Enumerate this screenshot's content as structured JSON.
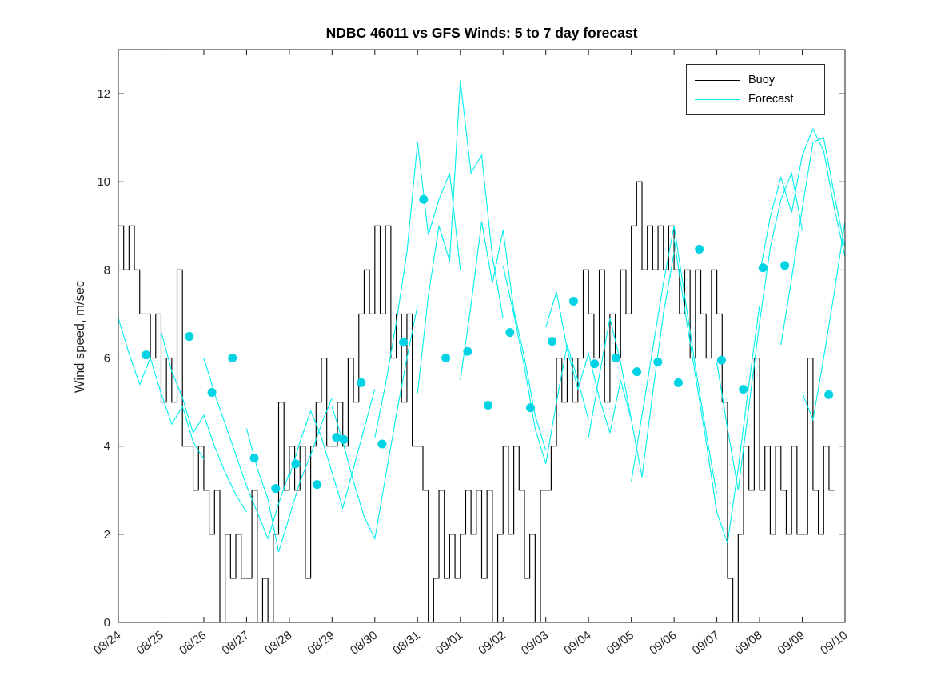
{
  "chart_data": {
    "type": "line",
    "title": "NDBC 46011 vs GFS Winds: 5 to 7 day forecast",
    "xlabel": "",
    "ylabel": "Wind speed, m/sec",
    "ylim": [
      0,
      13
    ],
    "x_range": [
      0,
      17
    ],
    "yticks": [
      0,
      2,
      4,
      6,
      8,
      10,
      12
    ],
    "xtick_labels": [
      "08/24",
      "08/25",
      "08/26",
      "08/27",
      "08/28",
      "08/29",
      "08/30",
      "08/31",
      "09/01",
      "09/02",
      "09/03",
      "09/04",
      "09/05",
      "09/06",
      "09/07",
      "09/08",
      "09/09",
      "09/10"
    ],
    "grid": false,
    "legend": {
      "position": "top-right",
      "entries": [
        "Buoy",
        "Forecast"
      ]
    },
    "colors": {
      "buoy": "#000000",
      "forecast": "#00eeee",
      "marker": "#00d4e4"
    },
    "series": {
      "buoy": {
        "name": "Buoy",
        "style": "step",
        "t0": 0,
        "dt": 0.125,
        "values": [
          9,
          8,
          9,
          8,
          7,
          7,
          6,
          7,
          5,
          6,
          5,
          8,
          4,
          4,
          3,
          4,
          3,
          2,
          3,
          0,
          2,
          1,
          2,
          1,
          1,
          3,
          0,
          1,
          0,
          2,
          5,
          3,
          4,
          3,
          4,
          1,
          4,
          5,
          6,
          4,
          4,
          5,
          4,
          6,
          5,
          7,
          8,
          7,
          9,
          7,
          9,
          6,
          7,
          5,
          7,
          4,
          4,
          3,
          0,
          1,
          3,
          1,
          2,
          1,
          2,
          3,
          2,
          3,
          1,
          3,
          0,
          2,
          4,
          2,
          4,
          3,
          1,
          2,
          0,
          3,
          3,
          4,
          6,
          5,
          6,
          5,
          6,
          8,
          7,
          6,
          8,
          5,
          7,
          6,
          8,
          7,
          9,
          10,
          8,
          9,
          8,
          9,
          8,
          9,
          8,
          7,
          8,
          6,
          8,
          7,
          6,
          8,
          7,
          5,
          1,
          0,
          2,
          4,
          3,
          6,
          3,
          4,
          2,
          4,
          3,
          2,
          4,
          2,
          2,
          6,
          3,
          2,
          4,
          3
        ]
      },
      "forecast_runs": [
        {
          "t0": 0,
          "dt": 0.25,
          "values": [
            6.9,
            6.1,
            5.4,
            6.0,
            5.2,
            4.5,
            4.9,
            4.1,
            3.7
          ]
        },
        {
          "t0": 1,
          "dt": 0.25,
          "values": [
            6.6,
            5.7,
            5.1,
            4.3,
            4.7,
            4.0,
            3.4,
            2.9,
            2.5
          ]
        },
        {
          "t0": 2,
          "dt": 0.25,
          "values": [
            6.0,
            5.2,
            4.5,
            3.8,
            3.1,
            2.5,
            1.9,
            2.7,
            3.4
          ]
        },
        {
          "t0": 3,
          "dt": 0.25,
          "values": [
            4.4,
            3.5,
            2.8,
            1.6,
            2.4,
            3.2,
            3.8,
            4.5,
            5.1
          ]
        },
        {
          "t0": 4,
          "dt": 0.25,
          "values": [
            3.3,
            4.1,
            4.8,
            4.2,
            3.4,
            2.6,
            3.5,
            4.4,
            5.3
          ]
        },
        {
          "t0": 5,
          "dt": 0.25,
          "values": [
            4.9,
            4.1,
            3.2,
            2.4,
            1.9,
            3.3,
            4.7,
            6.0,
            7.2
          ]
        },
        {
          "t0": 6,
          "dt": 0.25,
          "values": [
            4.2,
            5.4,
            6.8,
            8.4,
            10.9,
            8.8,
            9.6,
            10.2,
            8.0
          ]
        },
        {
          "t0": 7,
          "dt": 0.25,
          "values": [
            5.2,
            7.4,
            9.0,
            8.2,
            12.3,
            10.2,
            10.6,
            8.3,
            6.9
          ]
        },
        {
          "t0": 8,
          "dt": 0.25,
          "values": [
            5.5,
            7.2,
            9.1,
            7.7,
            8.9,
            7.1,
            6.0,
            4.7,
            3.9
          ]
        },
        {
          "t0": 9,
          "dt": 0.25,
          "values": [
            8.1,
            7.0,
            5.8,
            4.4,
            3.6,
            5.0,
            6.3,
            5.5,
            4.6
          ]
        },
        {
          "t0": 10,
          "dt": 0.25,
          "values": [
            6.7,
            7.5,
            6.2,
            5.3,
            6.1,
            5.1,
            4.3,
            5.5,
            4.6
          ]
        },
        {
          "t0": 11,
          "dt": 0.25,
          "values": [
            4.2,
            5.6,
            6.9,
            5.9,
            4.6,
            3.3,
            5.2,
            7.0,
            8.4
          ]
        },
        {
          "t0": 12,
          "dt": 0.25,
          "values": [
            3.2,
            4.7,
            6.2,
            7.7,
            9.0,
            7.4,
            5.8,
            4.3,
            2.9
          ]
        },
        {
          "t0": 13,
          "dt": 0.25,
          "values": [
            8.7,
            7.1,
            5.6,
            4.1,
            2.5,
            1.8,
            3.5,
            5.4,
            7.2
          ]
        },
        {
          "t0": 14,
          "dt": 0.25,
          "values": [
            5.9,
            4.4,
            3.0,
            4.9,
            6.8,
            8.5,
            9.6,
            10.2,
            8.9
          ]
        },
        {
          "t0": 15,
          "dt": 0.25,
          "values": [
            7.9,
            9.2,
            10.1,
            9.3,
            10.6,
            11.2,
            10.7,
            9.4,
            8.3
          ]
        },
        {
          "t0": 15.5,
          "dt": 0.25,
          "values": [
            6.3,
            7.8,
            9.4,
            10.9,
            11.0,
            9.7,
            8.5
          ]
        },
        {
          "t0": 16,
          "dt": 0.25,
          "values": [
            5.2,
            4.6,
            6.0,
            7.5,
            9.1
          ]
        }
      ],
      "forecast_markers": [
        [
          0.65,
          6.07
        ],
        [
          1.66,
          6.49
        ],
        [
          2.19,
          5.22
        ],
        [
          2.67,
          6.0
        ],
        [
          3.18,
          3.73
        ],
        [
          3.68,
          3.04
        ],
        [
          4.15,
          3.6
        ],
        [
          4.65,
          3.13
        ],
        [
          5.1,
          4.2
        ],
        [
          5.27,
          4.15
        ],
        [
          5.68,
          5.44
        ],
        [
          6.17,
          4.05
        ],
        [
          6.67,
          6.36
        ],
        [
          7.14,
          9.6
        ],
        [
          7.66,
          6.0
        ],
        [
          8.17,
          6.15
        ],
        [
          8.65,
          4.93
        ],
        [
          9.16,
          6.58
        ],
        [
          9.64,
          4.87
        ],
        [
          10.15,
          6.38
        ],
        [
          10.65,
          7.29
        ],
        [
          11.14,
          5.87
        ],
        [
          11.64,
          6.0
        ],
        [
          12.13,
          5.69
        ],
        [
          12.62,
          5.91
        ],
        [
          13.1,
          5.44
        ],
        [
          13.59,
          8.47
        ],
        [
          14.11,
          5.95
        ],
        [
          14.62,
          5.29
        ],
        [
          15.08,
          8.05
        ],
        [
          15.59,
          8.1
        ],
        [
          16.62,
          5.17
        ]
      ]
    }
  }
}
